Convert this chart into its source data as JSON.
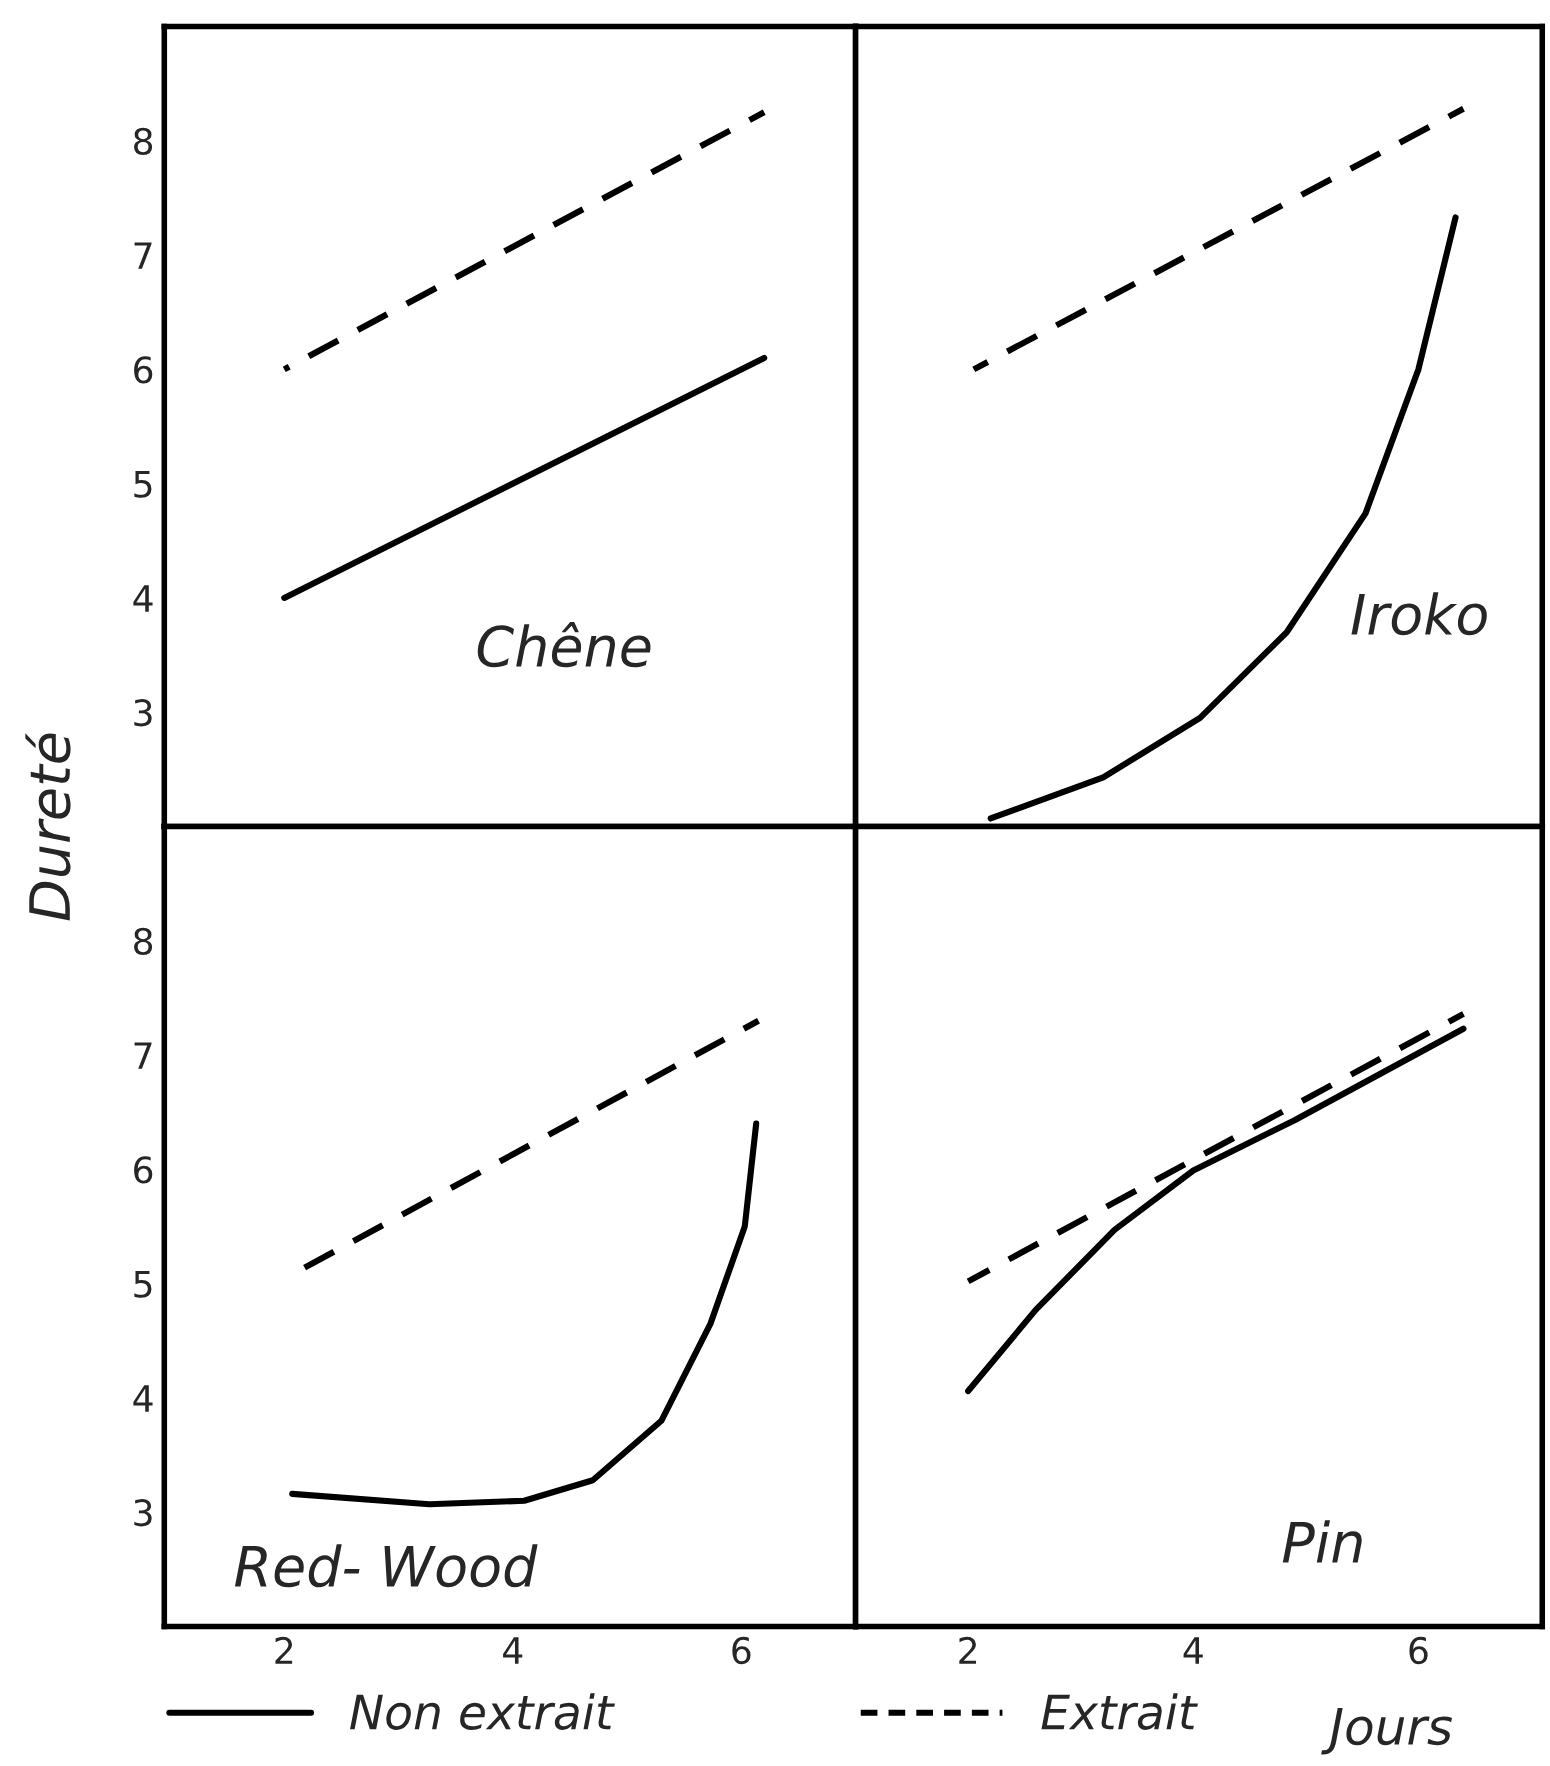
{
  "chart_data": [
    {
      "type": "line",
      "xlim": [
        0.95,
        7
      ],
      "ylim": [
        2,
        9
      ],
      "yticks": [
        3,
        4,
        5,
        6,
        7,
        8
      ],
      "xticks": [
        2,
        4,
        6
      ],
      "tick_labels": "y",
      "legend": false,
      "grid": false,
      "annotations": [
        "Chêne"
      ],
      "series": [
        {
          "color": "#000000",
          "line_style": "solid",
          "x": [
            2,
            6.2
          ],
          "values": [
            4.0,
            6.1
          ]
        },
        {
          "color": "#000000",
          "line_style": "dashed",
          "x": [
            2,
            6.2
          ],
          "values": [
            6.0,
            8.25
          ]
        }
      ]
    },
    {
      "type": "line",
      "xlim": [
        1,
        7.1
      ],
      "ylim": [
        2,
        9
      ],
      "yticks": [
        3,
        4,
        5,
        6,
        7,
        8
      ],
      "xticks": [
        2,
        4,
        6
      ],
      "tick_labels": false,
      "legend": false,
      "grid": false,
      "annotations": [
        "Iroko"
      ],
      "series": [
        {
          "color": "#000000",
          "line_style": "solid",
          "x": [
            2.2,
            3.2,
            4.06,
            4.83,
            5.53,
            6.0,
            6.33
          ],
          "values": [
            2.07,
            2.43,
            2.95,
            3.7,
            4.74,
            6.0,
            7.33
          ]
        },
        {
          "color": "#000000",
          "line_style": "dashed",
          "x": [
            2.05,
            6.4
          ],
          "values": [
            6.0,
            8.28
          ]
        }
      ]
    },
    {
      "type": "line",
      "xlim": [
        0.95,
        7
      ],
      "ylim": [
        2,
        9
      ],
      "yticks": [
        3,
        4,
        5,
        6,
        7,
        8
      ],
      "xticks": [
        2,
        4,
        6
      ],
      "ylabel": "Dureté",
      "legend": "bottom",
      "grid": false,
      "annotations": [
        "Red- Wood"
      ],
      "series": [
        {
          "name": "Non extrait",
          "color": "#000000",
          "line_style": "solid",
          "x": [
            2.07,
            3.27,
            4.1,
            4.7,
            5.3,
            5.73,
            6.03,
            6.13
          ],
          "values": [
            3.16,
            3.07,
            3.1,
            3.28,
            3.8,
            4.65,
            5.5,
            6.4
          ]
        },
        {
          "color": "#000000",
          "line_style": "dashed",
          "x": [
            2.05,
            6.15
          ],
          "values": [
            5.07,
            7.3
          ]
        }
      ]
    },
    {
      "type": "line",
      "xlim": [
        1,
        7.1
      ],
      "ylim": [
        2,
        9
      ],
      "yticks": [
        3,
        4,
        5,
        6,
        7,
        8
      ],
      "xticks": [
        2,
        4,
        6
      ],
      "xlabel": "Jours",
      "tick_labels": "x",
      "legend": "bottom",
      "grid": false,
      "annotations": [
        "Pin"
      ],
      "series": [
        {
          "color": "#000000",
          "line_style": "solid",
          "x": [
            2.0,
            2.6,
            3.3,
            4.0,
            4.9,
            6.4
          ],
          "values": [
            4.06,
            4.77,
            5.47,
            5.99,
            6.43,
            7.23
          ]
        },
        {
          "name": "Extrait",
          "color": "#000000",
          "line_style": "dashed",
          "x": [
            2.0,
            6.4
          ],
          "values": [
            5.02,
            7.36
          ]
        }
      ]
    }
  ]
}
